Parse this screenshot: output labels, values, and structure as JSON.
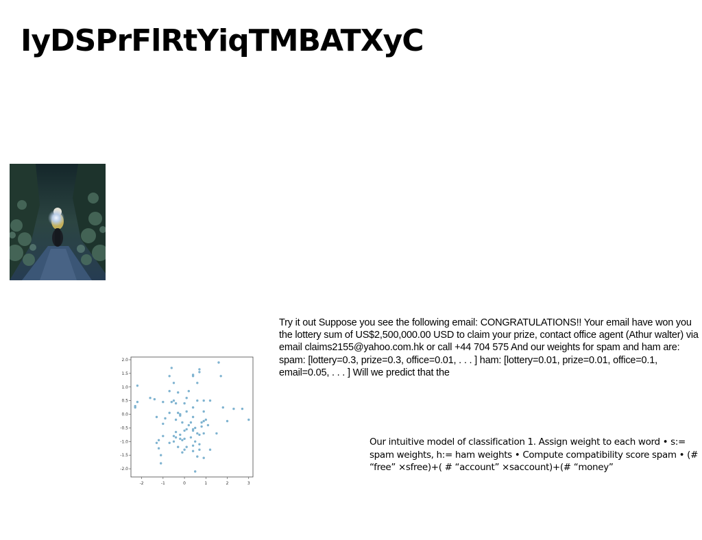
{
  "slide": {
    "title": "IyDSPrFlRtYiqTMBATXyC",
    "email_text": "Try it out Suppose you see the following email: CONGRATULATIONS!! Your email have won you the lottery sum of US$2,500,000.00 USD to claim your prize, contact office agent (Athur walter) via email claims2155@yahoo.com.hk or call +44 704 575 And our weights for spam and ham are: spam: [lottery=0.3, prize=0.3, office=0.01, . . . ] ham: [lottery=0.01, prize=0.01, office=0.1, email=0.05, . . . ] Will we predict that the",
    "model_text": "Our intuitive model of classification 1. Assign weight to each word • s:= spam weights, h:= ham weights • Compute compatibility score spam • (# “free” ×sfree)+( # “account” ×saccount)+(# “money”"
  },
  "photo": {
    "subject": "motorcycle rider on forest trail"
  },
  "chart_data": {
    "type": "scatter",
    "title": "",
    "xlabel": "",
    "ylabel": "",
    "xlim": [
      -2.5,
      3.2
    ],
    "ylim": [
      -2.3,
      2.1
    ],
    "xticks": [
      "-2",
      "-1",
      "0",
      "1",
      "2",
      "3"
    ],
    "xtick_values": [
      -2,
      -1,
      0,
      1,
      2,
      3
    ],
    "yticks": [
      "2.0",
      "1.5",
      "1.0",
      "0.5",
      "0.0",
      "-0.5",
      "-1.0",
      "-1.5",
      "-2.0"
    ],
    "ytick_values": [
      2.0,
      1.5,
      1.0,
      0.5,
      0.0,
      -0.5,
      -1.0,
      -1.5,
      -2.0
    ],
    "grid": false,
    "point_color": "#7fb3d0",
    "x": [
      1.6,
      -0.6,
      0.7,
      0.7,
      0.4,
      -0.7,
      0.4,
      1.7,
      -0.5,
      0.6,
      -2.2,
      0.2,
      -0.7,
      -0.3,
      0.1,
      -1.6,
      -1.4,
      -0.5,
      0.6,
      0.9,
      1.2,
      -2.2,
      -1.0,
      -0.6,
      0.0,
      -0.4,
      -2.3,
      -2.3,
      0.4,
      1.8,
      2.3,
      2.7,
      0.1,
      0.9,
      -0.3,
      -0.2,
      -0.7,
      -1.3,
      -0.2,
      -0.9,
      0.4,
      -0.4,
      1.0,
      0.9,
      2.0,
      3.0,
      0.3,
      -0.1,
      0.8,
      -1.0,
      0.2,
      1.1,
      0.8,
      0.5,
      0.4,
      0.1,
      0.0,
      0.4,
      -0.4,
      0.6,
      0.9,
      1.5,
      -0.2,
      0.7,
      -0.5,
      -1.0,
      -0.4,
      0.3,
      0.0,
      -0.2,
      -0.1,
      -1.2,
      0.5,
      -0.5,
      -1.3,
      -0.7,
      0.7,
      0.4,
      0.1,
      -0.3,
      -1.2,
      0.0,
      0.7,
      1.2,
      0.4,
      -0.1,
      -1.1,
      0.6,
      0.9,
      -1.1,
      0.5
    ],
    "y": [
      1.9,
      1.7,
      1.65,
      1.55,
      1.45,
      1.4,
      1.4,
      1.4,
      1.15,
      1.15,
      1.05,
      0.85,
      0.85,
      0.8,
      0.6,
      0.6,
      0.55,
      0.5,
      0.5,
      0.5,
      0.5,
      0.45,
      0.45,
      0.45,
      0.4,
      0.4,
      0.3,
      0.25,
      0.25,
      0.25,
      0.2,
      0.2,
      0.1,
      0.1,
      0.05,
      0.0,
      0.05,
      -0.1,
      -0.05,
      -0.15,
      -0.1,
      -0.2,
      -0.2,
      -0.25,
      -0.25,
      -0.2,
      -0.3,
      -0.3,
      -0.3,
      -0.35,
      -0.4,
      -0.4,
      -0.45,
      -0.5,
      -0.55,
      -0.55,
      -0.6,
      -0.6,
      -0.65,
      -0.7,
      -0.7,
      -0.7,
      -0.75,
      -0.75,
      -0.8,
      -0.8,
      -0.85,
      -0.85,
      -0.9,
      -0.9,
      -0.95,
      -0.95,
      -1.0,
      -1.0,
      -1.05,
      -1.05,
      -1.1,
      -1.15,
      -1.2,
      -1.2,
      -1.25,
      -1.3,
      -1.3,
      -1.3,
      -1.35,
      -1.4,
      -1.5,
      -1.55,
      -1.6,
      -1.8,
      -2.1
    ]
  }
}
